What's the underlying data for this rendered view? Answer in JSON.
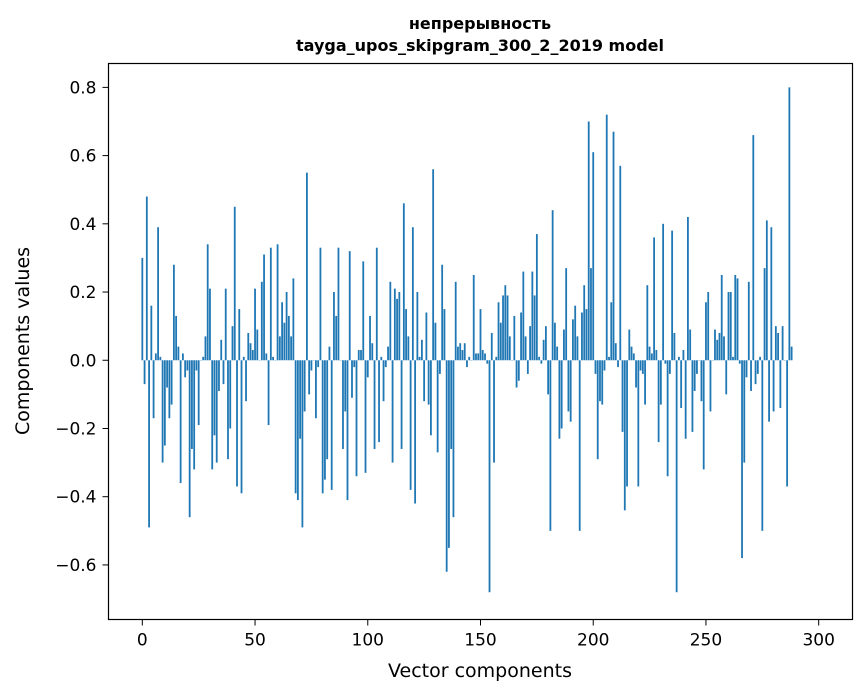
{
  "chart_data": {
    "type": "bar",
    "title_line1": "непрерывность",
    "title_line2": "tayga_upos_skipgram_300_2_2019 model",
    "xlabel": "Vector components",
    "ylabel": "Components values",
    "xlim": [
      -15,
      315
    ],
    "ylim": [
      -0.76,
      0.87
    ],
    "x_ticks": [
      0,
      50,
      100,
      150,
      200,
      250,
      300
    ],
    "y_ticks": [
      -0.6,
      -0.4,
      -0.2,
      0.0,
      0.2,
      0.4,
      0.6,
      0.8
    ],
    "y_tick_labels": [
      "−0.6",
      "−0.4",
      "−0.2",
      "0.0",
      "0.2",
      "0.4",
      "0.6",
      "0.8"
    ],
    "grid": false,
    "bar_color": "#1f77b4",
    "values": [
      0.3,
      -0.07,
      0.48,
      -0.49,
      0.16,
      -0.17,
      0.02,
      0.39,
      0.01,
      -0.3,
      -0.25,
      -0.08,
      -0.17,
      -0.13,
      0.28,
      0.13,
      0.04,
      -0.36,
      0.02,
      -0.05,
      -0.03,
      -0.46,
      -0.26,
      -0.32,
      -0.03,
      -0.19,
      0.0,
      0.01,
      0.07,
      0.34,
      0.21,
      -0.32,
      -0.22,
      -0.3,
      -0.09,
      0.06,
      -0.07,
      0.21,
      -0.29,
      -0.2,
      0.1,
      0.45,
      -0.37,
      0.15,
      -0.39,
      0.01,
      -0.12,
      0.08,
      0.05,
      0.03,
      0.21,
      0.09,
      0.0,
      0.23,
      0.31,
      0.02,
      -0.19,
      0.33,
      0.01,
      0.0,
      0.34,
      0.07,
      0.17,
      0.11,
      0.2,
      0.13,
      0.07,
      0.24,
      -0.39,
      -0.41,
      -0.23,
      -0.49,
      -0.15,
      0.55,
      -0.1,
      -0.03,
      0.0,
      -0.17,
      -0.02,
      0.33,
      -0.39,
      -0.35,
      -0.29,
      0.04,
      -0.38,
      0.2,
      0.13,
      0.33,
      0.0,
      -0.26,
      -0.15,
      -0.41,
      0.32,
      -0.11,
      -0.02,
      -0.34,
      0.03,
      0.03,
      0.29,
      -0.33,
      -0.05,
      0.13,
      0.05,
      -0.26,
      0.33,
      -0.24,
      0.01,
      -0.12,
      -0.02,
      0.04,
      0.23,
      -0.3,
      0.21,
      0.18,
      0.2,
      -0.26,
      0.46,
      0.15,
      0.07,
      -0.38,
      0.39,
      -0.42,
      0.2,
      0.01,
      0.06,
      -0.12,
      0.14,
      -0.13,
      -0.22,
      0.56,
      0.11,
      -0.27,
      -0.04,
      0.28,
      0.15,
      -0.62,
      -0.55,
      -0.26,
      -0.46,
      0.23,
      0.04,
      0.05,
      0.03,
      0.05,
      -0.02,
      0.01,
      0.0,
      0.25,
      0.02,
      0.02,
      0.15,
      0.03,
      0.02,
      -0.01,
      -0.68,
      0.08,
      -0.3,
      0.01,
      0.17,
      0.11,
      0.19,
      0.22,
      0.19,
      0.07,
      0.0,
      0.13,
      -0.08,
      -0.06,
      0.14,
      0.26,
      0.07,
      -0.04,
      0.1,
      0.26,
      0.19,
      0.37,
      0.01,
      -0.01,
      0.06,
      0.1,
      -0.1,
      -0.5,
      0.44,
      0.11,
      0.04,
      -0.23,
      -0.2,
      0.09,
      0.27,
      -0.15,
      -0.18,
      0.12,
      0.16,
      0.07,
      -0.5,
      0.14,
      0.22,
      0.15,
      0.7,
      0.27,
      0.61,
      -0.04,
      -0.29,
      -0.12,
      -0.13,
      -0.03,
      0.72,
      0.01,
      0.17,
      0.67,
      0.05,
      -0.02,
      0.57,
      -0.21,
      -0.44,
      -0.37,
      0.09,
      0.04,
      0.02,
      -0.08,
      -0.37,
      -0.03,
      -0.04,
      -0.13,
      0.22,
      0.04,
      0.02,
      0.36,
      0.03,
      -0.24,
      -0.13,
      0.4,
      -0.01,
      -0.34,
      -0.04,
      0.38,
      0.08,
      -0.68,
      0.01,
      -0.14,
      0.03,
      -0.23,
      0.42,
      0.09,
      -0.21,
      -0.09,
      -0.04,
      0.0,
      -0.12,
      -0.32,
      0.17,
      0.2,
      -0.15,
      0.0,
      0.09,
      0.06,
      0.08,
      0.25,
      0.07,
      -0.1,
      0.2,
      0.2,
      0.01,
      0.25,
      0.24,
      -0.01,
      -0.58,
      -0.3,
      -0.05,
      0.23,
      -0.09,
      0.66,
      -0.07,
      -0.04,
      0.01,
      -0.5,
      0.27,
      0.41,
      -0.18,
      0.39,
      -0.15,
      0.1,
      0.08,
      -0.14,
      0.1,
      0.0,
      -0.37,
      0.8,
      0.04
    ]
  }
}
